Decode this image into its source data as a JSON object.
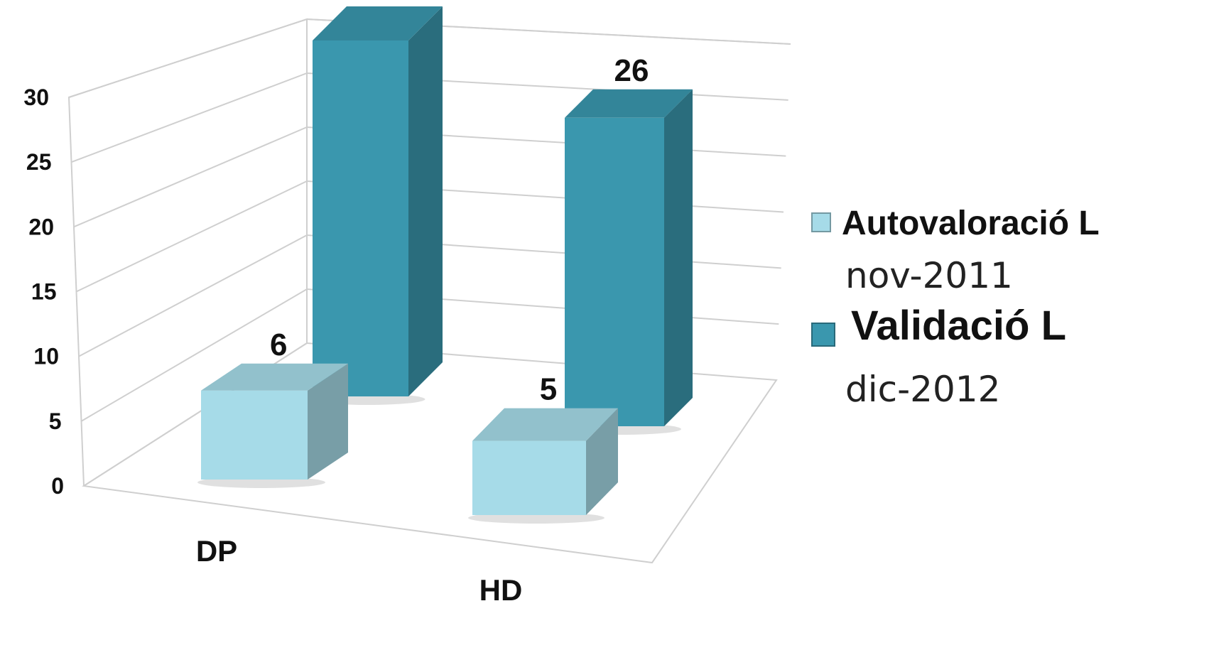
{
  "chart_data": {
    "type": "bar",
    "style": "3d-clustered-column",
    "categories": [
      "DP",
      "HD"
    ],
    "series": [
      {
        "name_line1": "Autovaloració L",
        "name_line2": "nov-2011",
        "values": [
          6,
          5
        ],
        "color": "#a6dbe8"
      },
      {
        "name_line1": "Validació L",
        "name_line2": "dic-2012",
        "values": [
          30,
          26
        ],
        "color": "#3a97ae"
      }
    ],
    "yticks": [
      "0",
      "5",
      "10",
      "15",
      "20",
      "25",
      "30"
    ],
    "ylim": [
      0,
      30
    ],
    "grid": true,
    "legend_position": "right",
    "data_labels": true
  }
}
